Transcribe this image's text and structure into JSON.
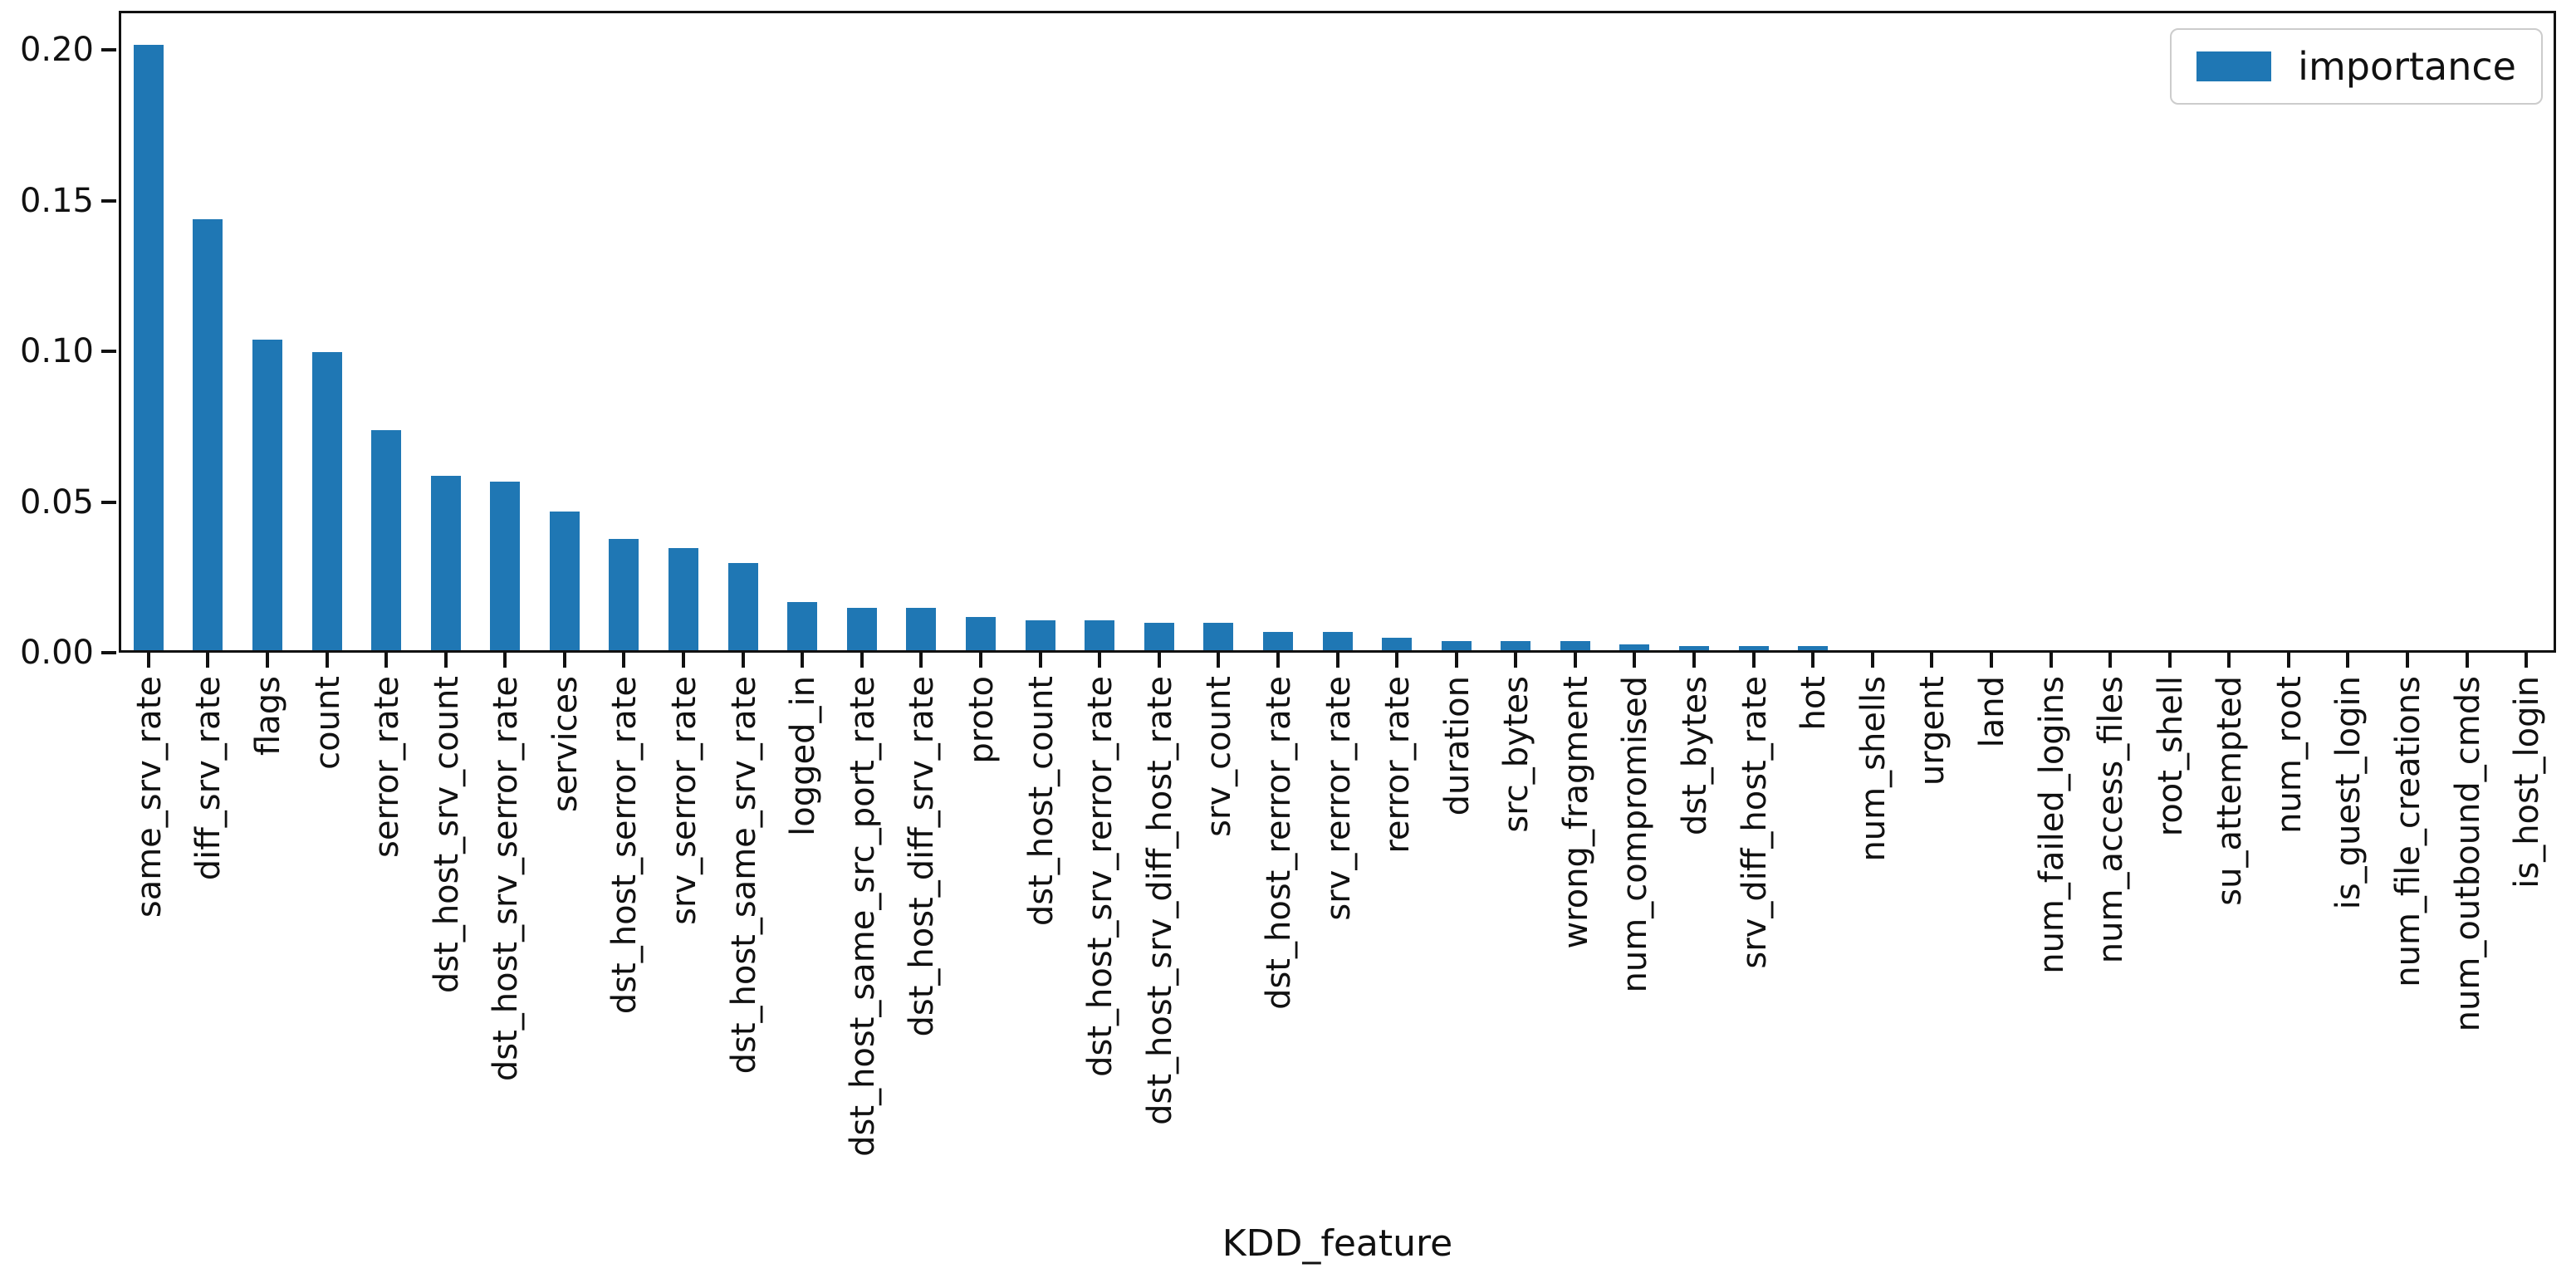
{
  "chart_data": {
    "type": "bar",
    "title": "",
    "xlabel": "KDD_feature",
    "ylabel": "",
    "legend_label": "importance",
    "legend_position": "upper right",
    "grid": false,
    "bar_color": "#1f77b4",
    "axis_color": "#111111",
    "ylim": [
      0,
      0.213
    ],
    "yticks": [
      0.0,
      0.05,
      0.1,
      0.15,
      0.2
    ],
    "ytick_labels": [
      "0.00",
      "0.05",
      "0.10",
      "0.15",
      "0.20"
    ],
    "categories": [
      "same_srv_rate",
      "diff_srv_rate",
      "flags",
      "count",
      "serror_rate",
      "dst_host_srv_count",
      "dst_host_srv_serror_rate",
      "services",
      "dst_host_serror_rate",
      "srv_serror_rate",
      "dst_host_same_srv_rate",
      "logged_in",
      "dst_host_same_src_port_rate",
      "dst_host_diff_srv_rate",
      "proto",
      "dst_host_count",
      "dst_host_srv_rerror_rate",
      "dst_host_srv_diff_host_rate",
      "srv_count",
      "dst_host_rerror_rate",
      "srv_rerror_rate",
      "rerror_rate",
      "duration",
      "src_bytes",
      "wrong_fragment",
      "num_compromised",
      "dst_bytes",
      "srv_diff_host_rate",
      "hot",
      "num_shells",
      "urgent",
      "land",
      "num_failed_logins",
      "num_access_files",
      "root_shell",
      "su_attempted",
      "num_root",
      "is_guest_login",
      "num_file_creations",
      "num_outbound_cmds",
      "is_host_login"
    ],
    "values": [
      0.201,
      0.143,
      0.103,
      0.099,
      0.073,
      0.058,
      0.056,
      0.046,
      0.037,
      0.034,
      0.029,
      0.016,
      0.014,
      0.014,
      0.011,
      0.01,
      0.01,
      0.009,
      0.009,
      0.006,
      0.006,
      0.004,
      0.003,
      0.003,
      0.003,
      0.002,
      0.0015,
      0.0015,
      0.0013,
      0.0,
      0.0,
      0.0,
      0.0,
      0.0,
      0.0,
      0.0,
      0.0,
      0.0,
      0.0,
      0.0,
      0.0
    ]
  }
}
